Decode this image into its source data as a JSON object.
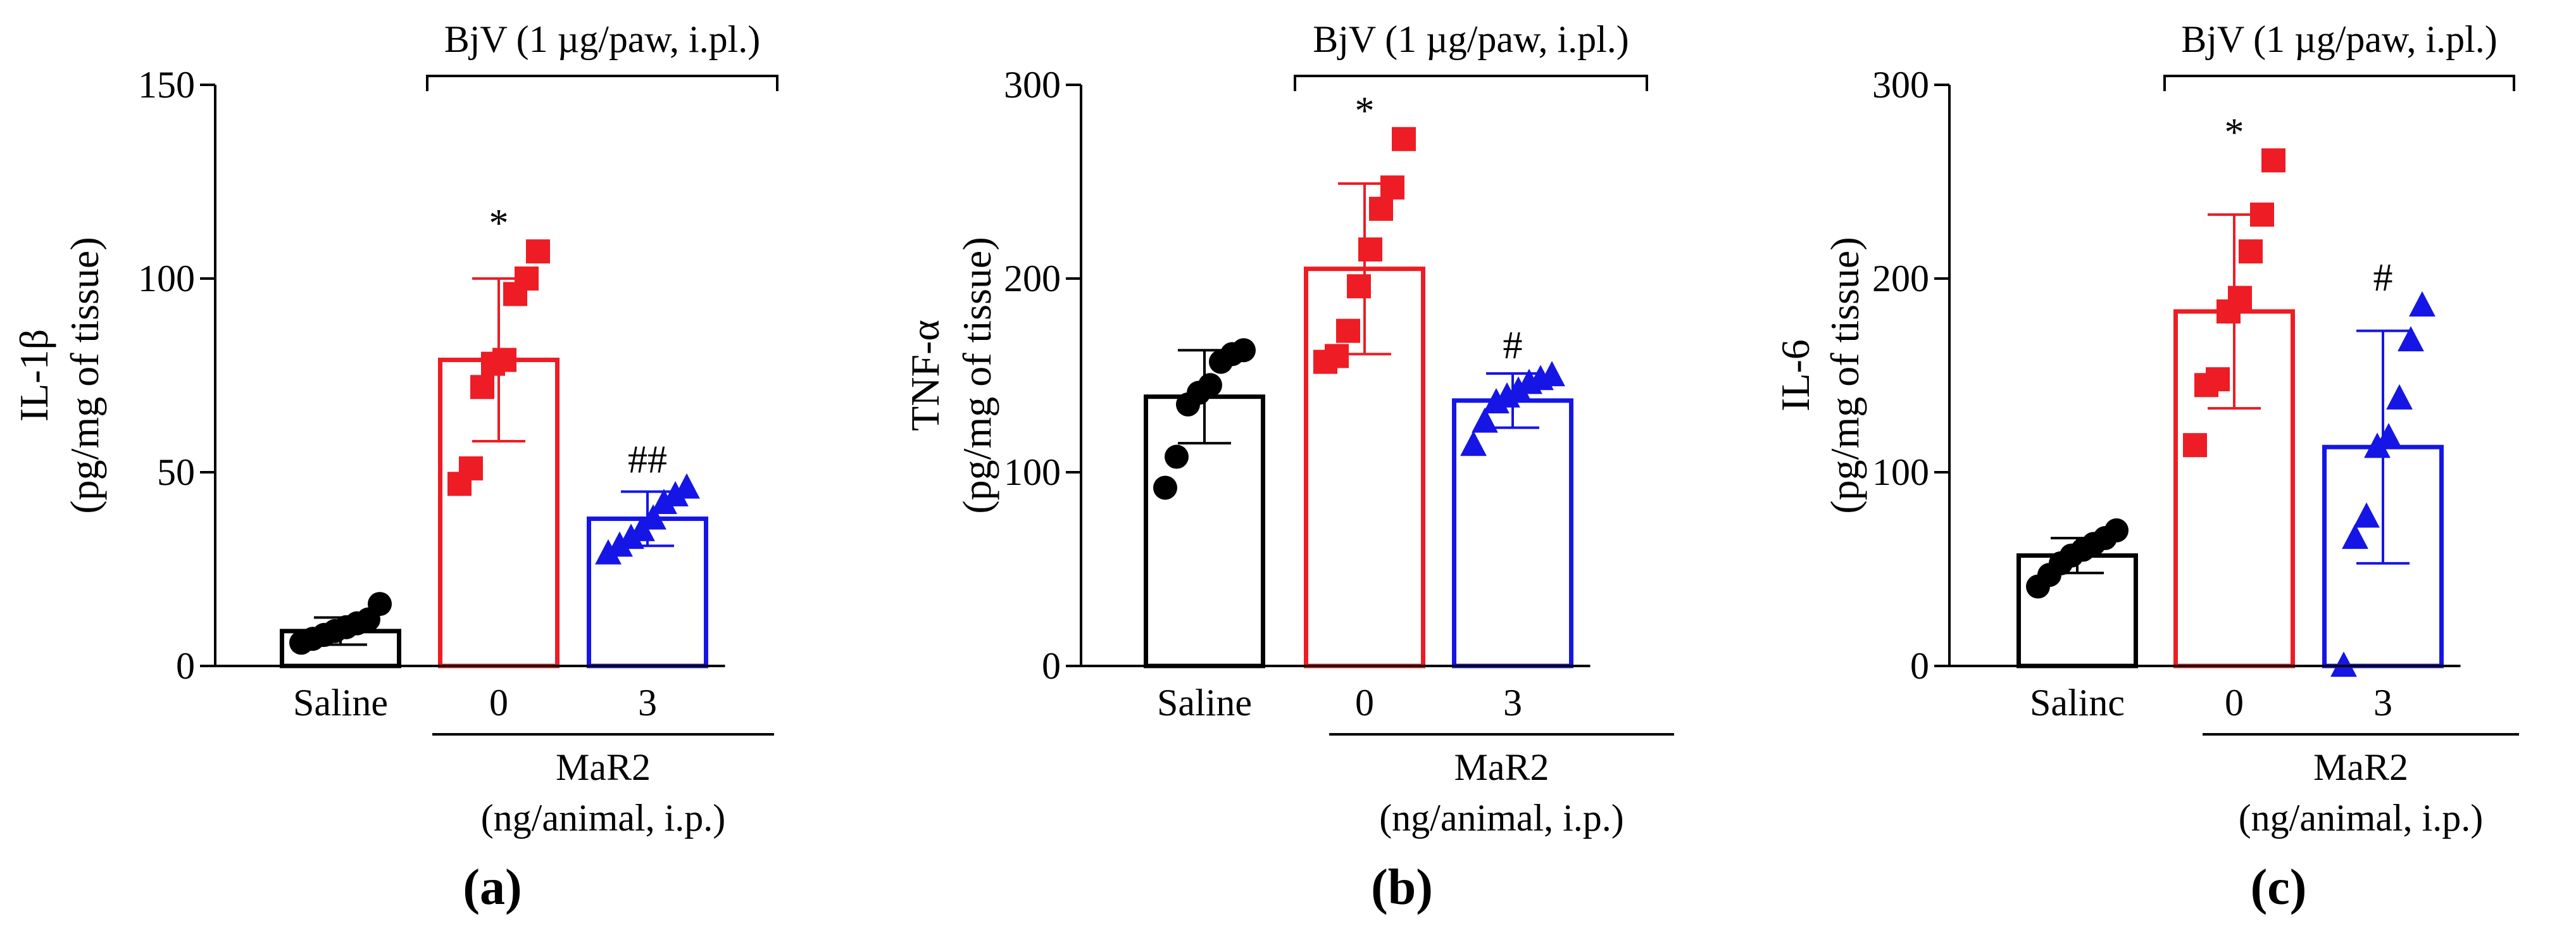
{
  "chart_data": [
    {
      "type": "bar",
      "panel_label": "(a)",
      "ylabel_line1": "IL-1β",
      "ylabel_line2": "(pg/mg of tissue)",
      "ylim": [
        0,
        150
      ],
      "yticks": [
        0,
        50,
        100,
        150
      ],
      "categories": [
        "Saline",
        "0",
        "3"
      ],
      "colors": [
        "#000000",
        "#ee1c24",
        "#1515e6"
      ],
      "markers": [
        "circle",
        "square",
        "triangle"
      ],
      "values": [
        9,
        79,
        38
      ],
      "errors": [
        3.5,
        21,
        7
      ],
      "points": [
        [
          6,
          7,
          8,
          9,
          10,
          11,
          12,
          16
        ],
        [
          47,
          51,
          72,
          78,
          79,
          96,
          100,
          107
        ],
        [
          29,
          31,
          33,
          35,
          38,
          42,
          44,
          46
        ]
      ],
      "significance": [
        "",
        "*",
        "##"
      ],
      "bracket_top": "BjV (1 µg/paw, i.pl.)",
      "bracket_bottom_line1": "MaR2",
      "bracket_bottom_line2": "(ng/animal, i.p.)"
    },
    {
      "type": "bar",
      "panel_label": "(b)",
      "ylabel_line1": "TNF-α",
      "ylabel_line2": "(pg/mg of tissue)",
      "ylim": [
        0,
        300
      ],
      "yticks": [
        0,
        100,
        200,
        300
      ],
      "categories": [
        "Saline",
        "0",
        "3"
      ],
      "colors": [
        "#000000",
        "#ee1c24",
        "#1515e6"
      ],
      "markers": [
        "circle",
        "square",
        "triangle"
      ],
      "values": [
        139,
        205,
        137
      ],
      "errors": [
        24,
        44,
        14
      ],
      "points": [
        [
          92,
          108,
          135,
          141,
          145,
          157,
          161,
          163
        ],
        [
          157,
          160,
          173,
          196,
          215,
          236,
          247,
          272
        ],
        [
          114,
          126,
          136,
          139,
          142,
          146,
          148,
          150
        ]
      ],
      "significance": [
        "",
        "*",
        "#"
      ],
      "bracket_top": "BjV (1 µg/paw, i.pl.)",
      "bracket_bottom_line1": "MaR2",
      "bracket_bottom_line2": "(ng/animal, i.p.)"
    },
    {
      "type": "bar",
      "panel_label": "(c)",
      "ylabel_line1": "IL-6",
      "ylabel_line2": "(pg/mg of tissue)",
      "ylim": [
        0,
        300
      ],
      "yticks": [
        0,
        100,
        200,
        300
      ],
      "categories": [
        "Salinc",
        "0",
        "3"
      ],
      "colors": [
        "#000000",
        "#ee1c24",
        "#1515e6"
      ],
      "markers": [
        "circle",
        "square",
        "triangle"
      ],
      "values": [
        57,
        183,
        113
      ],
      "errors": [
        9,
        50,
        60
      ],
      "points": [
        [
          41,
          47,
          53,
          57,
          60,
          63,
          66,
          70
        ],
        [
          114,
          145,
          148,
          183,
          190,
          214,
          233,
          261
        ],
        [
          0,
          66,
          77,
          113,
          118,
          138,
          168,
          186
        ]
      ],
      "significance": [
        "",
        "*",
        "#"
      ],
      "bracket_top": "BjV (1 µg/paw, i.pl.)",
      "bracket_bottom_line1": "MaR2",
      "bracket_bottom_line2": "(ng/animal, i.p.)"
    }
  ]
}
